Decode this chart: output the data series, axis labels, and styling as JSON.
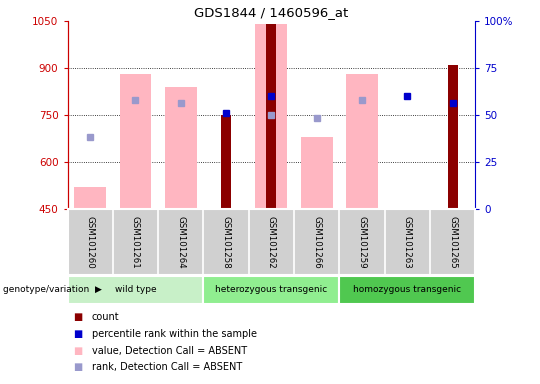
{
  "title": "GDS1844 / 1460596_at",
  "samples": [
    "GSM101260",
    "GSM101261",
    "GSM101264",
    "GSM101258",
    "GSM101262",
    "GSM101266",
    "GSM101259",
    "GSM101263",
    "GSM101265"
  ],
  "group_wild": {
    "label": "wild type",
    "color": "#c8f0c8",
    "indices": [
      0,
      1,
      2
    ]
  },
  "group_het": {
    "label": "heterozygous transgenic",
    "color": "#90ee90",
    "indices": [
      3,
      4,
      5
    ]
  },
  "group_hom": {
    "label": "homozygous transgenic",
    "color": "#50c850",
    "indices": [
      6,
      7,
      8
    ]
  },
  "ylim_left": [
    450,
    1050
  ],
  "ylim_right": [
    0,
    100
  ],
  "yticks_left": [
    450,
    600,
    750,
    900,
    1050
  ],
  "yticks_right": [
    0,
    25,
    50,
    75,
    100
  ],
  "ytick_right_labels": [
    "0",
    "25",
    "50",
    "75",
    "100%"
  ],
  "count_values": [
    null,
    null,
    null,
    750,
    1040,
    null,
    null,
    null,
    910
  ],
  "count_color": "#8b0000",
  "absent_value_values": [
    520,
    880,
    840,
    null,
    1040,
    680,
    880,
    null,
    null
  ],
  "absent_value_color": "#ffb6c1",
  "percentile_rank_values": [
    null,
    null,
    null,
    758,
    810,
    null,
    null,
    810,
    790
  ],
  "percentile_rank_color": "#0000cc",
  "absent_rank_values": [
    680,
    800,
    790,
    null,
    750,
    740,
    800,
    null,
    null
  ],
  "absent_rank_color": "#9999cc",
  "left_axis_color": "#cc0000",
  "right_axis_color": "#0000cc",
  "grid_yticks": [
    600,
    750,
    900
  ]
}
